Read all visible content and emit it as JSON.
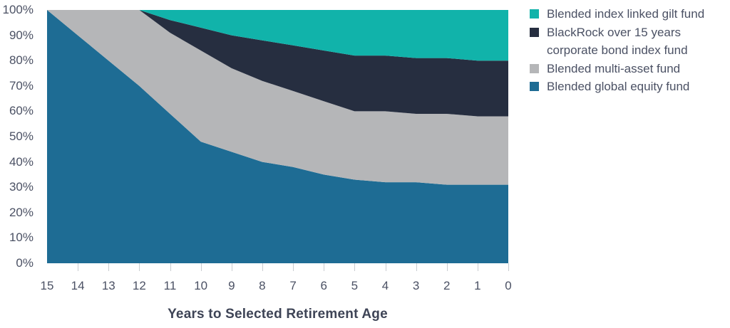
{
  "chart_data": {
    "type": "area",
    "stacked": true,
    "title": "",
    "xlabel": "Years to Selected Retirement Age",
    "ylabel": "",
    "x": [
      15,
      14,
      13,
      12,
      11,
      10,
      9,
      8,
      7,
      6,
      5,
      4,
      3,
      2,
      1,
      0
    ],
    "x_tick_labels": [
      "15",
      "14",
      "13",
      "12",
      "11",
      "10",
      "9",
      "8",
      "7",
      "6",
      "5",
      "4",
      "3",
      "2",
      "1",
      "0"
    ],
    "y_tick_labels": [
      "100%",
      "90%",
      "80%",
      "70%",
      "60%",
      "50%",
      "40%",
      "30%",
      "20%",
      "10%",
      "0%"
    ],
    "y_tick_values": [
      100,
      90,
      80,
      70,
      60,
      50,
      40,
      30,
      20,
      10,
      0
    ],
    "ylim": [
      0,
      100
    ],
    "grid": false,
    "legend_position": "right",
    "series": [
      {
        "name": "Blended global equity fund",
        "color": "#1e6c94",
        "values": [
          100,
          90,
          80,
          70,
          59,
          48,
          44,
          40,
          38,
          35,
          33,
          32,
          32,
          31,
          31,
          31
        ]
      },
      {
        "name": "Blended multi-asset fund",
        "color": "#b5b6b8",
        "values": [
          0,
          10,
          20,
          30,
          32,
          36,
          33,
          32,
          30,
          29,
          27,
          28,
          27,
          28,
          27,
          27
        ]
      },
      {
        "name": "BlackRock over 15 years corporate bond index fund",
        "color": "#262e40",
        "values": [
          0,
          0,
          0,
          0,
          5,
          9,
          13,
          16,
          18,
          20,
          22,
          22,
          22,
          22,
          22,
          22
        ]
      },
      {
        "name": "Blended index linked gilt fund",
        "color": "#11b3aa",
        "values": [
          0,
          0,
          0,
          0,
          4,
          7,
          10,
          12,
          14,
          16,
          18,
          18,
          19,
          19,
          20,
          20
        ]
      }
    ],
    "legend_items": [
      {
        "label": "Blended index linked gilt fund",
        "color": "#11b3aa"
      },
      {
        "label": "BlackRock over 15 years\ncorporate bond index fund",
        "color": "#262e40"
      },
      {
        "label": "Blended multi-asset fund",
        "color": "#b5b6b8"
      },
      {
        "label": "Blended global equity fund",
        "color": "#1e6c94"
      }
    ],
    "tick_color": "#c9cdd1"
  }
}
